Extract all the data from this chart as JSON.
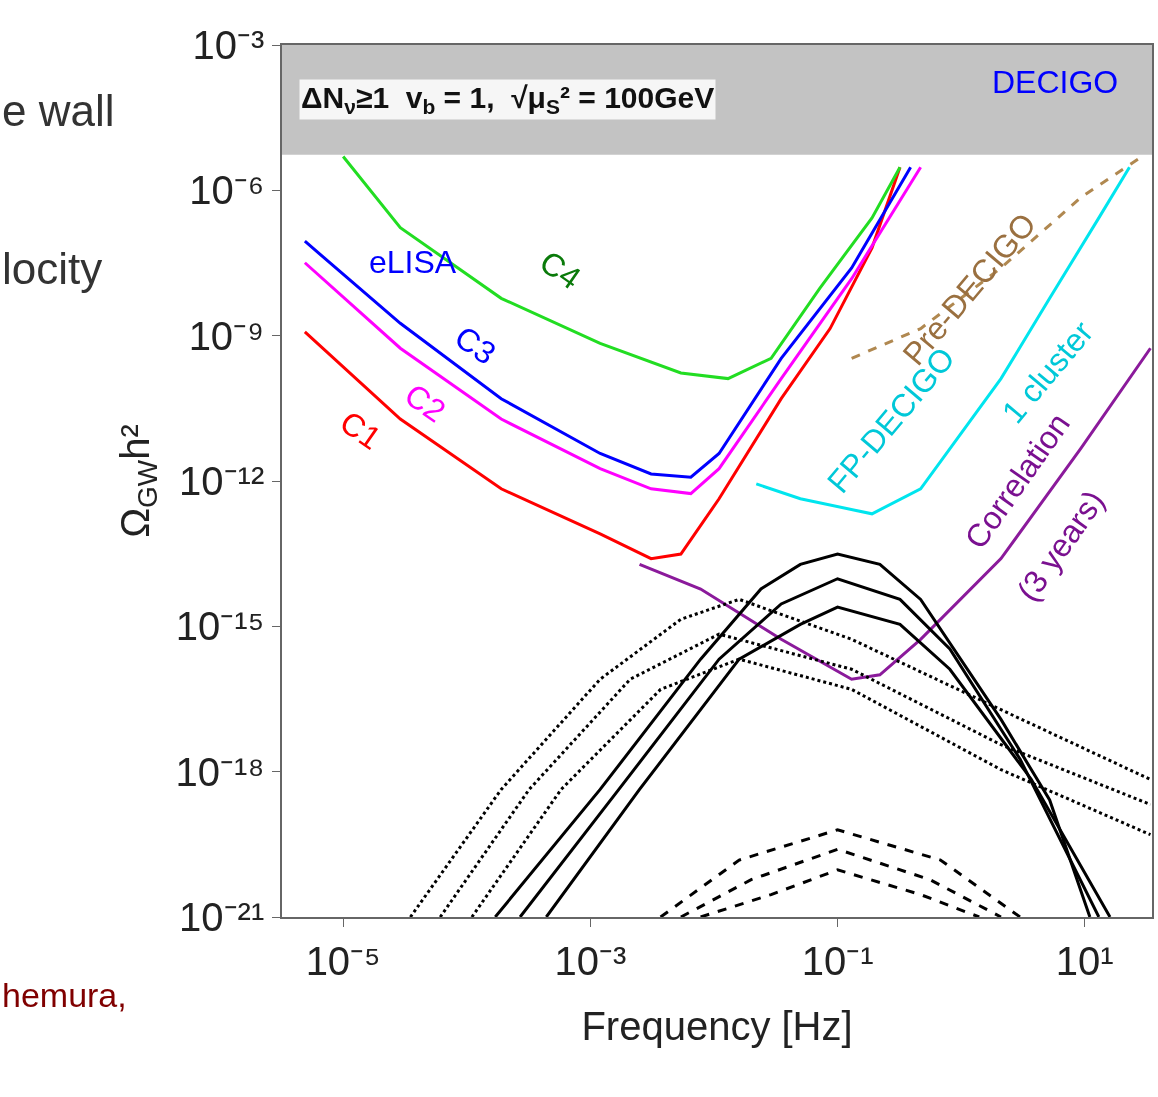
{
  "chart_data": {
    "type": "line",
    "xlabel": "Frequency [Hz]",
    "ylabel": "Ω$_{GW}$h²",
    "log": "xy",
    "xlim": [
      3.2e-06,
      35
    ],
    "ylim": [
      1e-21,
      0.001
    ],
    "xticks": [
      {
        "value": 1e-05,
        "label": "10⁻⁵"
      },
      {
        "value": 0.001,
        "label": "10⁻³"
      },
      {
        "value": 0.1,
        "label": "10⁻¹"
      },
      {
        "value": 10,
        "label": "10¹"
      }
    ],
    "yticks": [
      {
        "value": 1e-21,
        "label": "10⁻²¹"
      },
      {
        "value": 1e-18,
        "label": "10⁻¹⁸"
      },
      {
        "value": 1e-15,
        "label": "10⁻¹⁵"
      },
      {
        "value": 1e-12,
        "label": "10⁻¹²"
      },
      {
        "value": 1e-09,
        "label": "10⁻⁹"
      },
      {
        "value": 1e-06,
        "label": "10⁻⁶"
      },
      {
        "value": 0.001,
        "label": "10⁻³"
      }
    ],
    "bands": [
      {
        "axis": "y",
        "from": 5.4e-06,
        "to": 0.001,
        "label": "ΔN$_{ν}$≥1  v$_{b}$ = 1,  √μ$_{S}$² = 100GeV",
        "color": "#a9a9a9"
      }
    ],
    "series": [
      {
        "color": "#ff0000",
        "x": [
          4.9e-06,
          2.9e-05,
          0.00019,
          0.0012,
          0.0031,
          0.0054,
          0.011,
          0.035,
          0.087,
          0.19,
          0.32
        ],
        "values": [
          1.2e-09,
          1.9e-11,
          6.9e-13,
          8.1e-14,
          2.5e-14,
          3.1e-14,
          4.3e-13,
          5e-11,
          1.4e-09,
          6.5e-08,
          3e-06
        ]
      },
      {
        "color": "#ff00ff",
        "x": [
          4.9e-06,
          2.9e-05,
          0.00019,
          0.0012,
          0.0031,
          0.0065,
          0.011,
          0.035,
          0.13,
          0.47
        ],
        "values": [
          3.2e-08,
          5.5e-10,
          1.9e-11,
          1.8e-12,
          6.9e-13,
          5.5e-13,
          1.8e-12,
          1.3e-10,
          1.5e-08,
          3e-06
        ]
      },
      {
        "color": "#0000ff",
        "x": [
          4.9e-06,
          2.9e-05,
          0.00019,
          0.0012,
          0.0031,
          0.0065,
          0.011,
          0.035,
          0.13,
          0.39
        ],
        "values": [
          8.9e-08,
          1.8e-09,
          5e-11,
          3.7e-12,
          1.4e-12,
          1.2e-12,
          3.7e-12,
          3.4e-10,
          2.5e-08,
          3e-06
        ]
      },
      {
        "color": "#22dd22",
        "x": [
          1e-05,
          2.9e-05,
          0.00019,
          0.0012,
          0.0054,
          0.013,
          0.029,
          0.072,
          0.19,
          0.32
        ],
        "values": [
          5e-06,
          1.7e-07,
          5.9e-09,
          6.9e-10,
          1.7e-10,
          1.3e-10,
          3.4e-10,
          9.6e-09,
          2.7e-07,
          3e-06
        ]
      },
      {
        "color": "#b08850",
        "line_style": "dashed",
        "x": [
          0.13,
          0.47,
          2.1,
          9.3,
          28
        ],
        "values": [
          3.4e-10,
          1.4e-09,
          2.5e-08,
          7.1e-07,
          4.7e-06
        ]
      },
      {
        "color": "#00e5ee",
        "x": [
          0.022,
          0.05,
          0.19,
          0.47,
          2.1,
          5.2,
          13,
          23
        ],
        "values": [
          8.7e-13,
          4.3e-13,
          2.1e-13,
          6.9e-13,
          1.3e-10,
          5.9e-09,
          2.7e-07,
          3e-06
        ]
      },
      {
        "color": "#8b1a9b",
        "x": [
          0.0025,
          0.0078,
          0.035,
          0.13,
          0.22,
          0.47,
          2.1,
          9.3,
          34
        ],
        "values": [
          1.9e-14,
          5.9e-15,
          5.4e-16,
          8.1e-17,
          1e-16,
          5.4e-16,
          2.5e-14,
          4.7e-12,
          5.5e-10
        ]
      },
      {
        "color": "#000000",
        "x": [
          0.00017,
          0.0012,
          0.0078,
          0.024,
          0.05,
          0.1,
          0.22,
          0.47,
          2.1,
          5.2,
          11
        ],
        "values": [
          1e-21,
          4.3e-19,
          2.1e-16,
          5.9e-15,
          1.9e-14,
          3.1e-14,
          1.9e-14,
          3.6e-15,
          1.2e-17,
          2.6e-19,
          1e-21
        ]
      },
      {
        "color": "#000000",
        "x": [
          0.00027,
          0.0017,
          0.011,
          0.035,
          0.1,
          0.32,
          0.81,
          3.0,
          13
        ],
        "values": [
          1e-21,
          4.3e-19,
          2.1e-16,
          2.9e-15,
          9.6e-15,
          3.6e-15,
          3.4e-16,
          1.8e-18,
          1e-21
        ]
      },
      {
        "color": "#000000",
        "x": [
          0.00044,
          0.0025,
          0.016,
          0.05,
          0.1,
          0.32,
          0.81,
          3.7,
          16
        ],
        "values": [
          1e-21,
          4.3e-19,
          2.1e-16,
          1.1e-15,
          2.5e-15,
          1.1e-15,
          1.3e-16,
          6.9e-19,
          1e-21
        ]
      },
      {
        "color": "#000000",
        "line_style": "dotted",
        "x": [
          3.5e-05,
          0.00019,
          0.0012,
          0.0054,
          0.016,
          0.13,
          2.1,
          34
        ],
        "values": [
          1e-21,
          4.3e-19,
          8.1e-17,
          1.4e-15,
          3.6e-15,
          5.4e-16,
          1.9e-17,
          6.9e-19
        ]
      },
      {
        "color": "#000000",
        "line_style": "dotted",
        "x": [
          6.1e-05,
          0.00032,
          0.0021,
          0.011,
          0.13,
          2.1,
          34
        ],
        "values": [
          1e-21,
          4.3e-19,
          8.1e-17,
          6.9e-16,
          1.3e-16,
          3.6e-18,
          2.1e-19
        ]
      },
      {
        "color": "#000000",
        "line_style": "dotted",
        "x": [
          0.00011,
          0.00058,
          0.0037,
          0.016,
          0.13,
          2.1,
          34
        ],
        "values": [
          1e-21,
          4.3e-19,
          5e-17,
          2.1e-16,
          5e-17,
          1.1e-18,
          5e-20
        ]
      },
      {
        "color": "#000000",
        "line_style": "dashed",
        "x": [
          0.0037,
          0.016,
          0.1,
          0.68,
          3.0
        ],
        "values": [
          1e-21,
          1.5e-20,
          6.3e-20,
          1.5e-20,
          1e-21
        ]
      },
      {
        "color": "#000000",
        "line_style": "dashed",
        "x": [
          0.0054,
          0.02,
          0.1,
          0.56,
          2.1
        ],
        "values": [
          1e-21,
          5.9e-21,
          2.5e-20,
          5.9e-21,
          1e-21
        ]
      },
      {
        "color": "#000000",
        "line_style": "dashed",
        "x": [
          0.0078,
          0.029,
          0.1,
          0.47,
          1.4
        ],
        "values": [
          1e-21,
          2.9e-21,
          9.4e-21,
          2.9e-21,
          1e-21
        ]
      }
    ],
    "annotations": [
      "C1",
      "C2",
      "C3",
      "C4",
      "eLISA",
      "DECIGO",
      "Pre-DECIGO",
      "FP-DECIGO",
      "1 cluster",
      "Correlation",
      "(3 years)",
      "e wall",
      "locity",
      "hemura,"
    ]
  }
}
